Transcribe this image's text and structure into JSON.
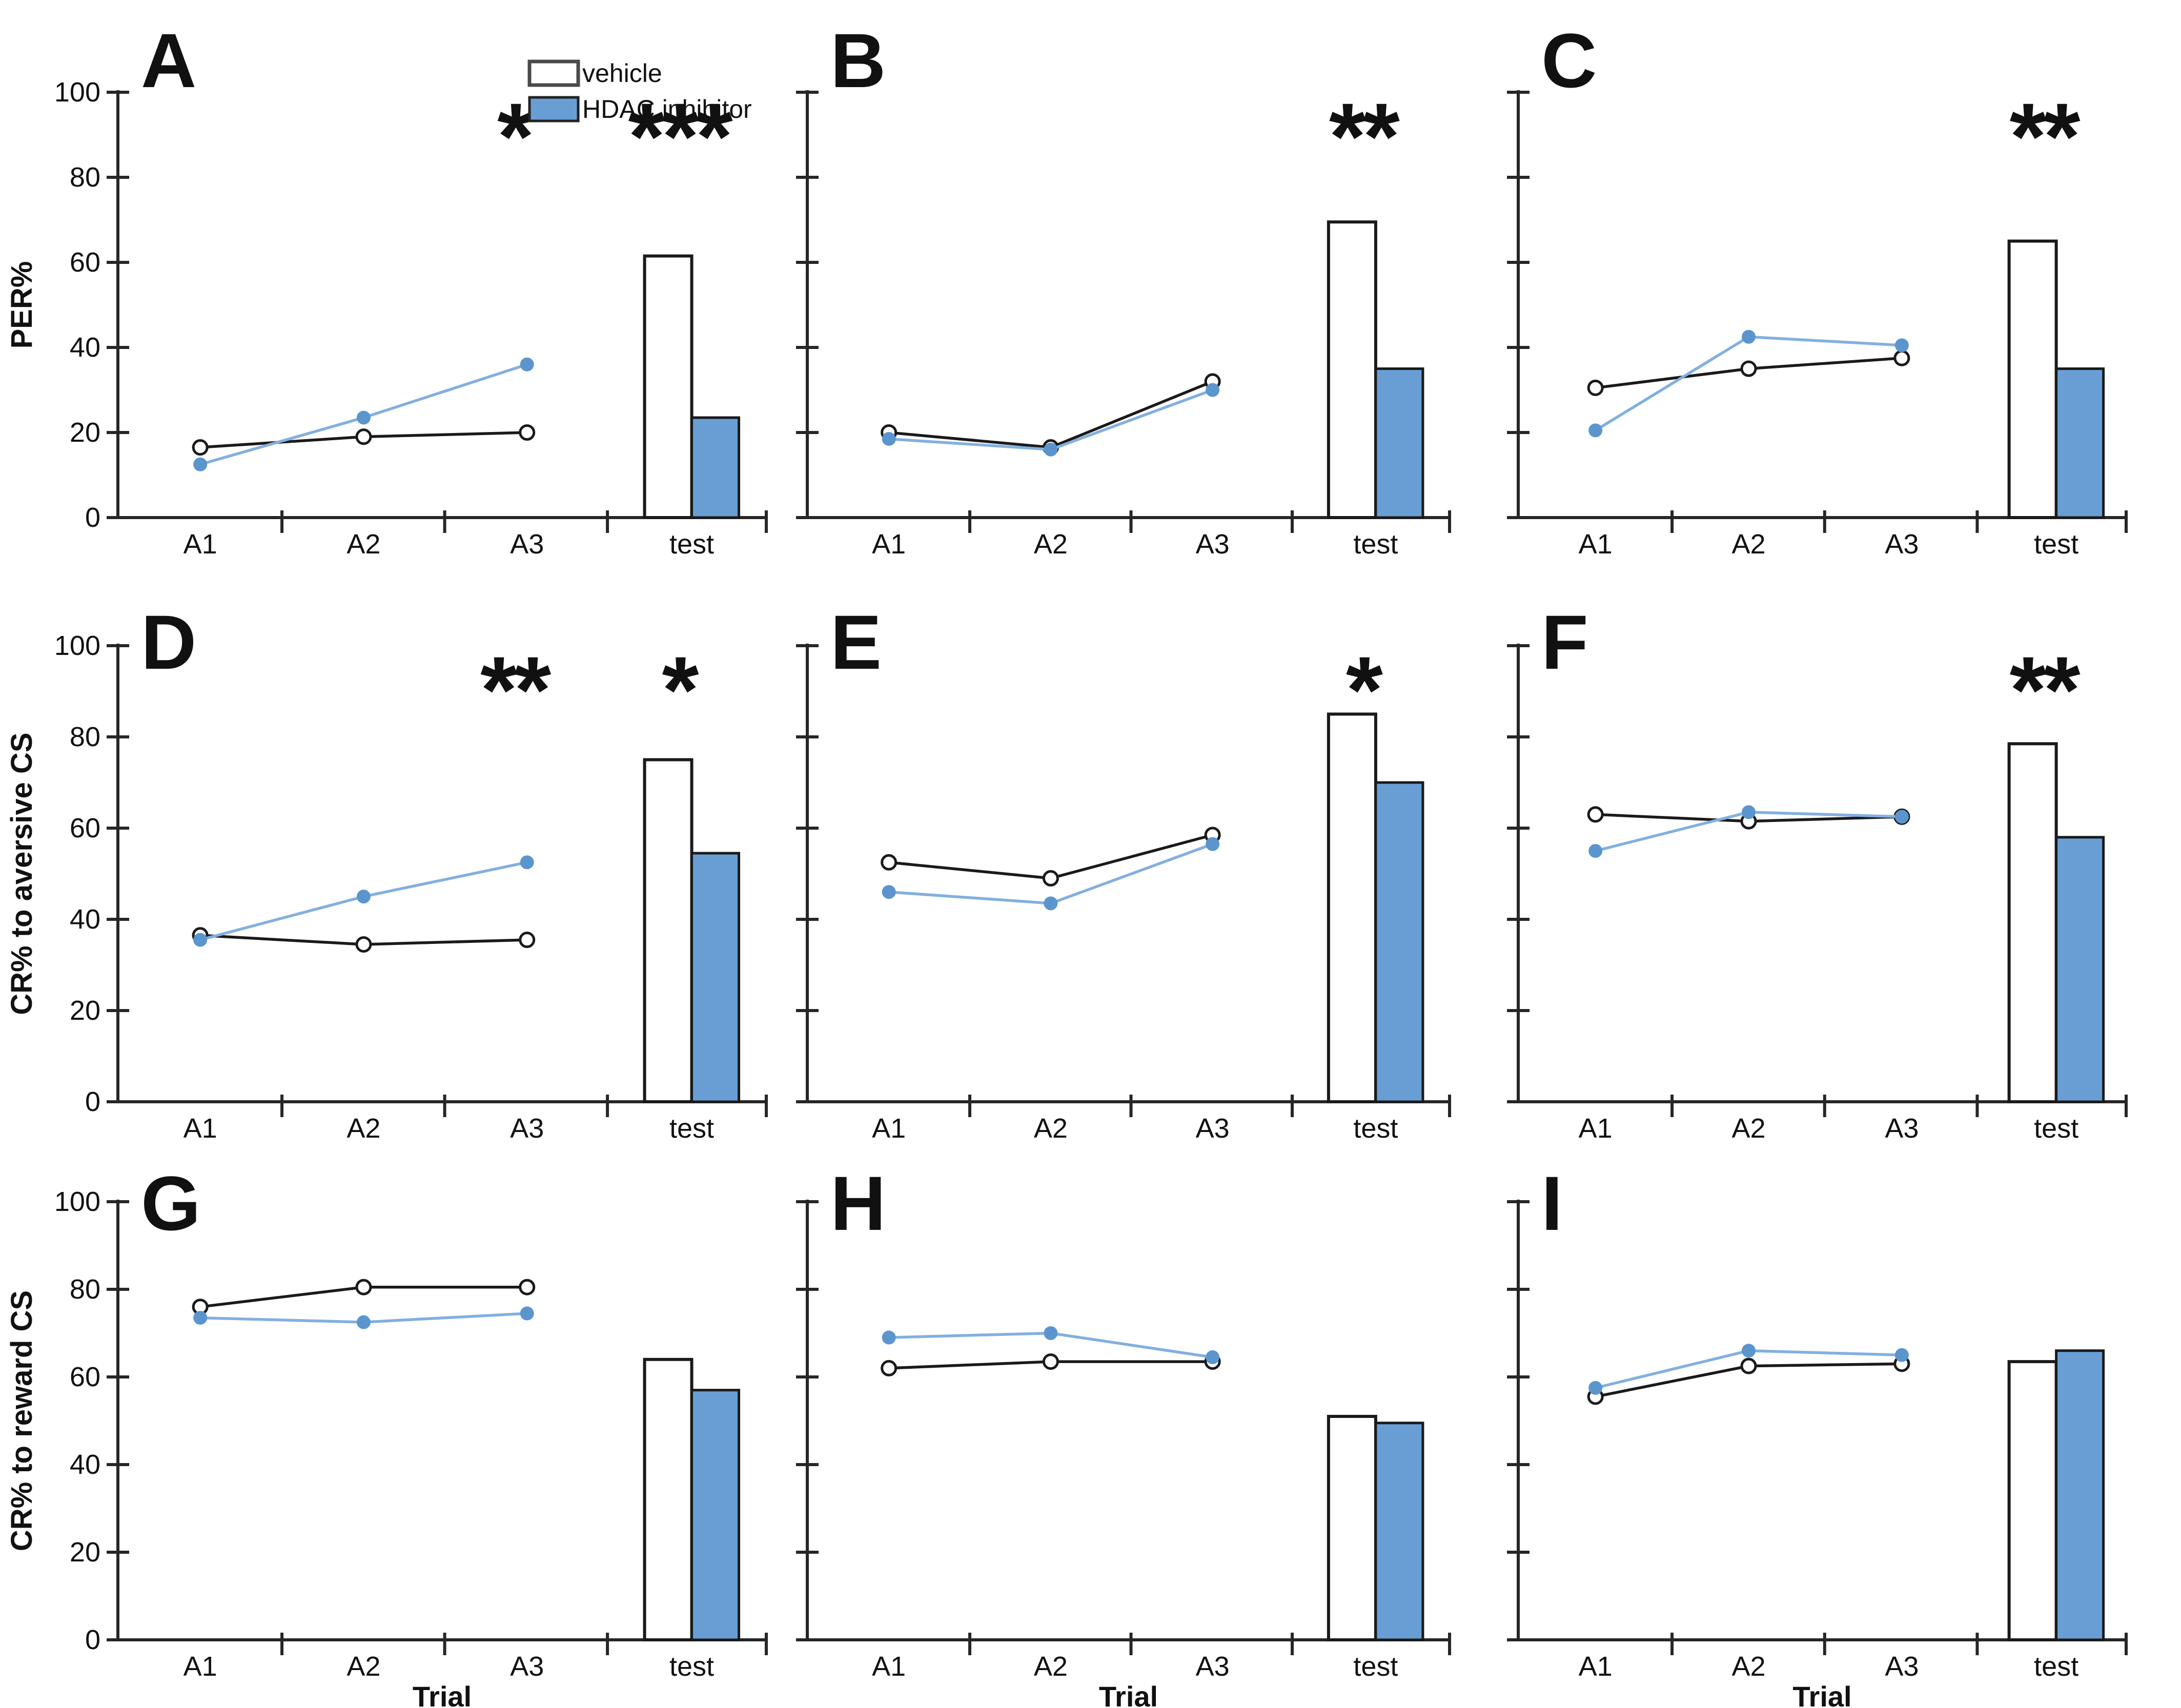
{
  "figure": {
    "x_tick_labels": [
      "A1",
      "A2",
      "A3",
      "test"
    ],
    "x_axis_title": "Trial",
    "y_ticks": [
      0,
      20,
      40,
      60,
      80,
      100
    ],
    "legend": {
      "items": [
        {
          "label": "vehicle",
          "series": "vehicle"
        },
        {
          "label": "HDAC inhibitor",
          "series": "hdac"
        }
      ]
    },
    "colors": {
      "vehicle_line": "#1a1a1a",
      "vehicle_marker_fill": "#ffffff",
      "hdac_bar_fill": "#689ED4",
      "hdac_line": "#82AFDF",
      "hdac_marker_fill": "#5B95CE",
      "axis": "#262626",
      "bar_outline": "#1a1a1a"
    }
  },
  "chart_data": [
    {
      "panel": "A",
      "type": "line+bar",
      "ylabel": "PER%",
      "ylim": [
        0,
        100
      ],
      "categories": [
        "A1",
        "A2",
        "A3"
      ],
      "series": [
        {
          "name": "vehicle",
          "values": [
            16.5,
            19,
            20
          ]
        },
        {
          "name": "HDAC inhibitor",
          "values": [
            12.5,
            23.5,
            36
          ]
        }
      ],
      "test_bars": {
        "vehicle": 61.5,
        "hdac": 23.5
      },
      "significance": [
        {
          "x": "A3",
          "label": "*"
        },
        {
          "x": "test",
          "label": "***"
        }
      ],
      "show_y_tick_labels": true,
      "show_x_title": false,
      "show_legend": true
    },
    {
      "panel": "B",
      "type": "line+bar",
      "ylabel": "",
      "ylim": [
        0,
        100
      ],
      "categories": [
        "A1",
        "A2",
        "A3"
      ],
      "series": [
        {
          "name": "vehicle",
          "values": [
            20,
            16.5,
            32
          ]
        },
        {
          "name": "HDAC inhibitor",
          "values": [
            18.5,
            16,
            30
          ]
        }
      ],
      "test_bars": {
        "vehicle": 69.5,
        "hdac": 35
      },
      "significance": [
        {
          "x": "test",
          "label": "**"
        }
      ],
      "show_y_tick_labels": false,
      "show_x_title": false,
      "show_legend": false
    },
    {
      "panel": "C",
      "type": "line+bar",
      "ylabel": "",
      "ylim": [
        0,
        100
      ],
      "categories": [
        "A1",
        "A2",
        "A3"
      ],
      "series": [
        {
          "name": "vehicle",
          "values": [
            30.5,
            35,
            37.5
          ]
        },
        {
          "name": "HDAC inhibitor",
          "values": [
            20.5,
            42.5,
            40.5
          ]
        }
      ],
      "test_bars": {
        "vehicle": 65,
        "hdac": 35
      },
      "significance": [
        {
          "x": "test",
          "label": "**"
        }
      ],
      "show_y_tick_labels": false,
      "show_x_title": false,
      "show_legend": false
    },
    {
      "panel": "D",
      "type": "line+bar",
      "ylabel": "CR% to aversive CS",
      "ylim": [
        0,
        100
      ],
      "categories": [
        "A1",
        "A2",
        "A3"
      ],
      "series": [
        {
          "name": "vehicle",
          "values": [
            36.5,
            34.5,
            35.5
          ]
        },
        {
          "name": "HDAC inhibitor",
          "values": [
            35.5,
            45,
            52.5
          ]
        }
      ],
      "test_bars": {
        "vehicle": 75,
        "hdac": 54.5
      },
      "significance": [
        {
          "x": "A3",
          "label": "**"
        },
        {
          "x": "test",
          "label": "*"
        }
      ],
      "show_y_tick_labels": true,
      "show_x_title": false,
      "show_legend": false
    },
    {
      "panel": "E",
      "type": "line+bar",
      "ylabel": "",
      "ylim": [
        0,
        100
      ],
      "categories": [
        "A1",
        "A2",
        "A3"
      ],
      "series": [
        {
          "name": "vehicle",
          "values": [
            52.5,
            49,
            58.5
          ]
        },
        {
          "name": "HDAC inhibitor",
          "values": [
            46,
            43.5,
            56.5
          ]
        }
      ],
      "test_bars": {
        "vehicle": 85,
        "hdac": 70
      },
      "significance": [
        {
          "x": "test",
          "label": "*"
        }
      ],
      "show_y_tick_labels": false,
      "show_x_title": false,
      "show_legend": false
    },
    {
      "panel": "F",
      "type": "line+bar",
      "ylabel": "",
      "ylim": [
        0,
        100
      ],
      "categories": [
        "A1",
        "A2",
        "A3"
      ],
      "series": [
        {
          "name": "vehicle",
          "values": [
            63,
            61.5,
            62.5
          ]
        },
        {
          "name": "HDAC inhibitor",
          "values": [
            55,
            63.5,
            62.5
          ]
        }
      ],
      "test_bars": {
        "vehicle": 78.5,
        "hdac": 58
      },
      "significance": [
        {
          "x": "test",
          "label": "**"
        }
      ],
      "show_y_tick_labels": false,
      "show_x_title": false,
      "show_legend": false
    },
    {
      "panel": "G",
      "type": "line+bar",
      "ylabel": "CR% to reward CS",
      "ylim": [
        0,
        100
      ],
      "categories": [
        "A1",
        "A2",
        "A3"
      ],
      "series": [
        {
          "name": "vehicle",
          "values": [
            76,
            80.5,
            80.5
          ]
        },
        {
          "name": "HDAC inhibitor",
          "values": [
            73.5,
            72.5,
            74.5
          ]
        }
      ],
      "test_bars": {
        "vehicle": 64,
        "hdac": 57
      },
      "significance": [],
      "show_y_tick_labels": true,
      "show_x_title": true,
      "show_legend": false
    },
    {
      "panel": "H",
      "type": "line+bar",
      "ylabel": "",
      "ylim": [
        0,
        100
      ],
      "categories": [
        "A1",
        "A2",
        "A3"
      ],
      "series": [
        {
          "name": "vehicle",
          "values": [
            62,
            63.5,
            63.5
          ]
        },
        {
          "name": "HDAC inhibitor",
          "values": [
            69,
            70,
            64.5
          ]
        }
      ],
      "test_bars": {
        "vehicle": 51,
        "hdac": 49.5
      },
      "significance": [],
      "show_y_tick_labels": false,
      "show_x_title": true,
      "show_legend": false
    },
    {
      "panel": "I",
      "type": "line+bar",
      "ylabel": "",
      "ylim": [
        0,
        100
      ],
      "categories": [
        "A1",
        "A2",
        "A3"
      ],
      "series": [
        {
          "name": "vehicle",
          "values": [
            55.5,
            62.5,
            63
          ]
        },
        {
          "name": "HDAC inhibitor",
          "values": [
            57.5,
            66,
            65
          ]
        }
      ],
      "test_bars": {
        "vehicle": 63.5,
        "hdac": 66
      },
      "significance": [],
      "show_y_tick_labels": false,
      "show_x_title": true,
      "show_legend": false
    }
  ]
}
